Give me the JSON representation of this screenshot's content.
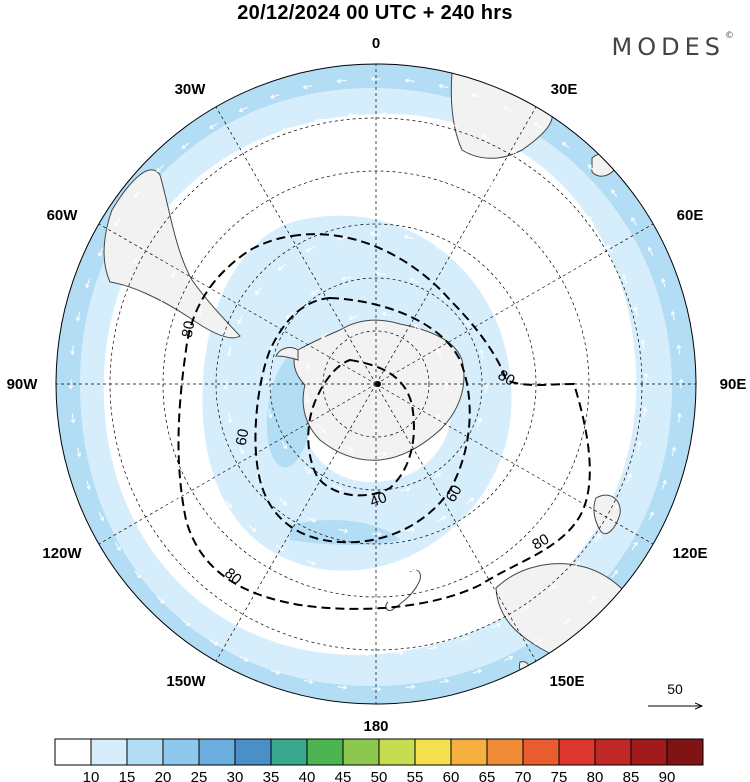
{
  "header": {
    "title": "20/12/2024  00 UTC  + 240 hrs",
    "brand": "MODES",
    "brand_mark": "©"
  },
  "map": {
    "projection": "south polar stereographic",
    "longitude_labels": [
      "0",
      "30E",
      "60E",
      "90E",
      "120E",
      "150E",
      "180",
      "150W",
      "120W",
      "90W",
      "60W",
      "30W"
    ],
    "contour_labels": [
      "80",
      "80",
      "80",
      "80",
      "60",
      "60",
      "40"
    ],
    "colors": {
      "ocean": "#ffffff",
      "land": "#f2f2f2",
      "coast": "#444444",
      "band_10_15": "#d6eefc",
      "band_15_20": "#b3ddf5"
    }
  },
  "vector_key": {
    "label": "50"
  },
  "colorbar": {
    "labels": [
      "10",
      "15",
      "20",
      "25",
      "30",
      "35",
      "40",
      "45",
      "50",
      "55",
      "60",
      "65",
      "70",
      "75",
      "80",
      "85",
      "90"
    ],
    "colors": [
      "#ffffff",
      "#d6eefc",
      "#b3ddf5",
      "#8fc8ed",
      "#6aaee0",
      "#4a8fc8",
      "#3aa88c",
      "#4cb450",
      "#8cc850",
      "#c8dc50",
      "#f5e050",
      "#f5b040",
      "#f08c38",
      "#e85c30",
      "#dc3830",
      "#c02828",
      "#a01c1c",
      "#801414"
    ]
  }
}
